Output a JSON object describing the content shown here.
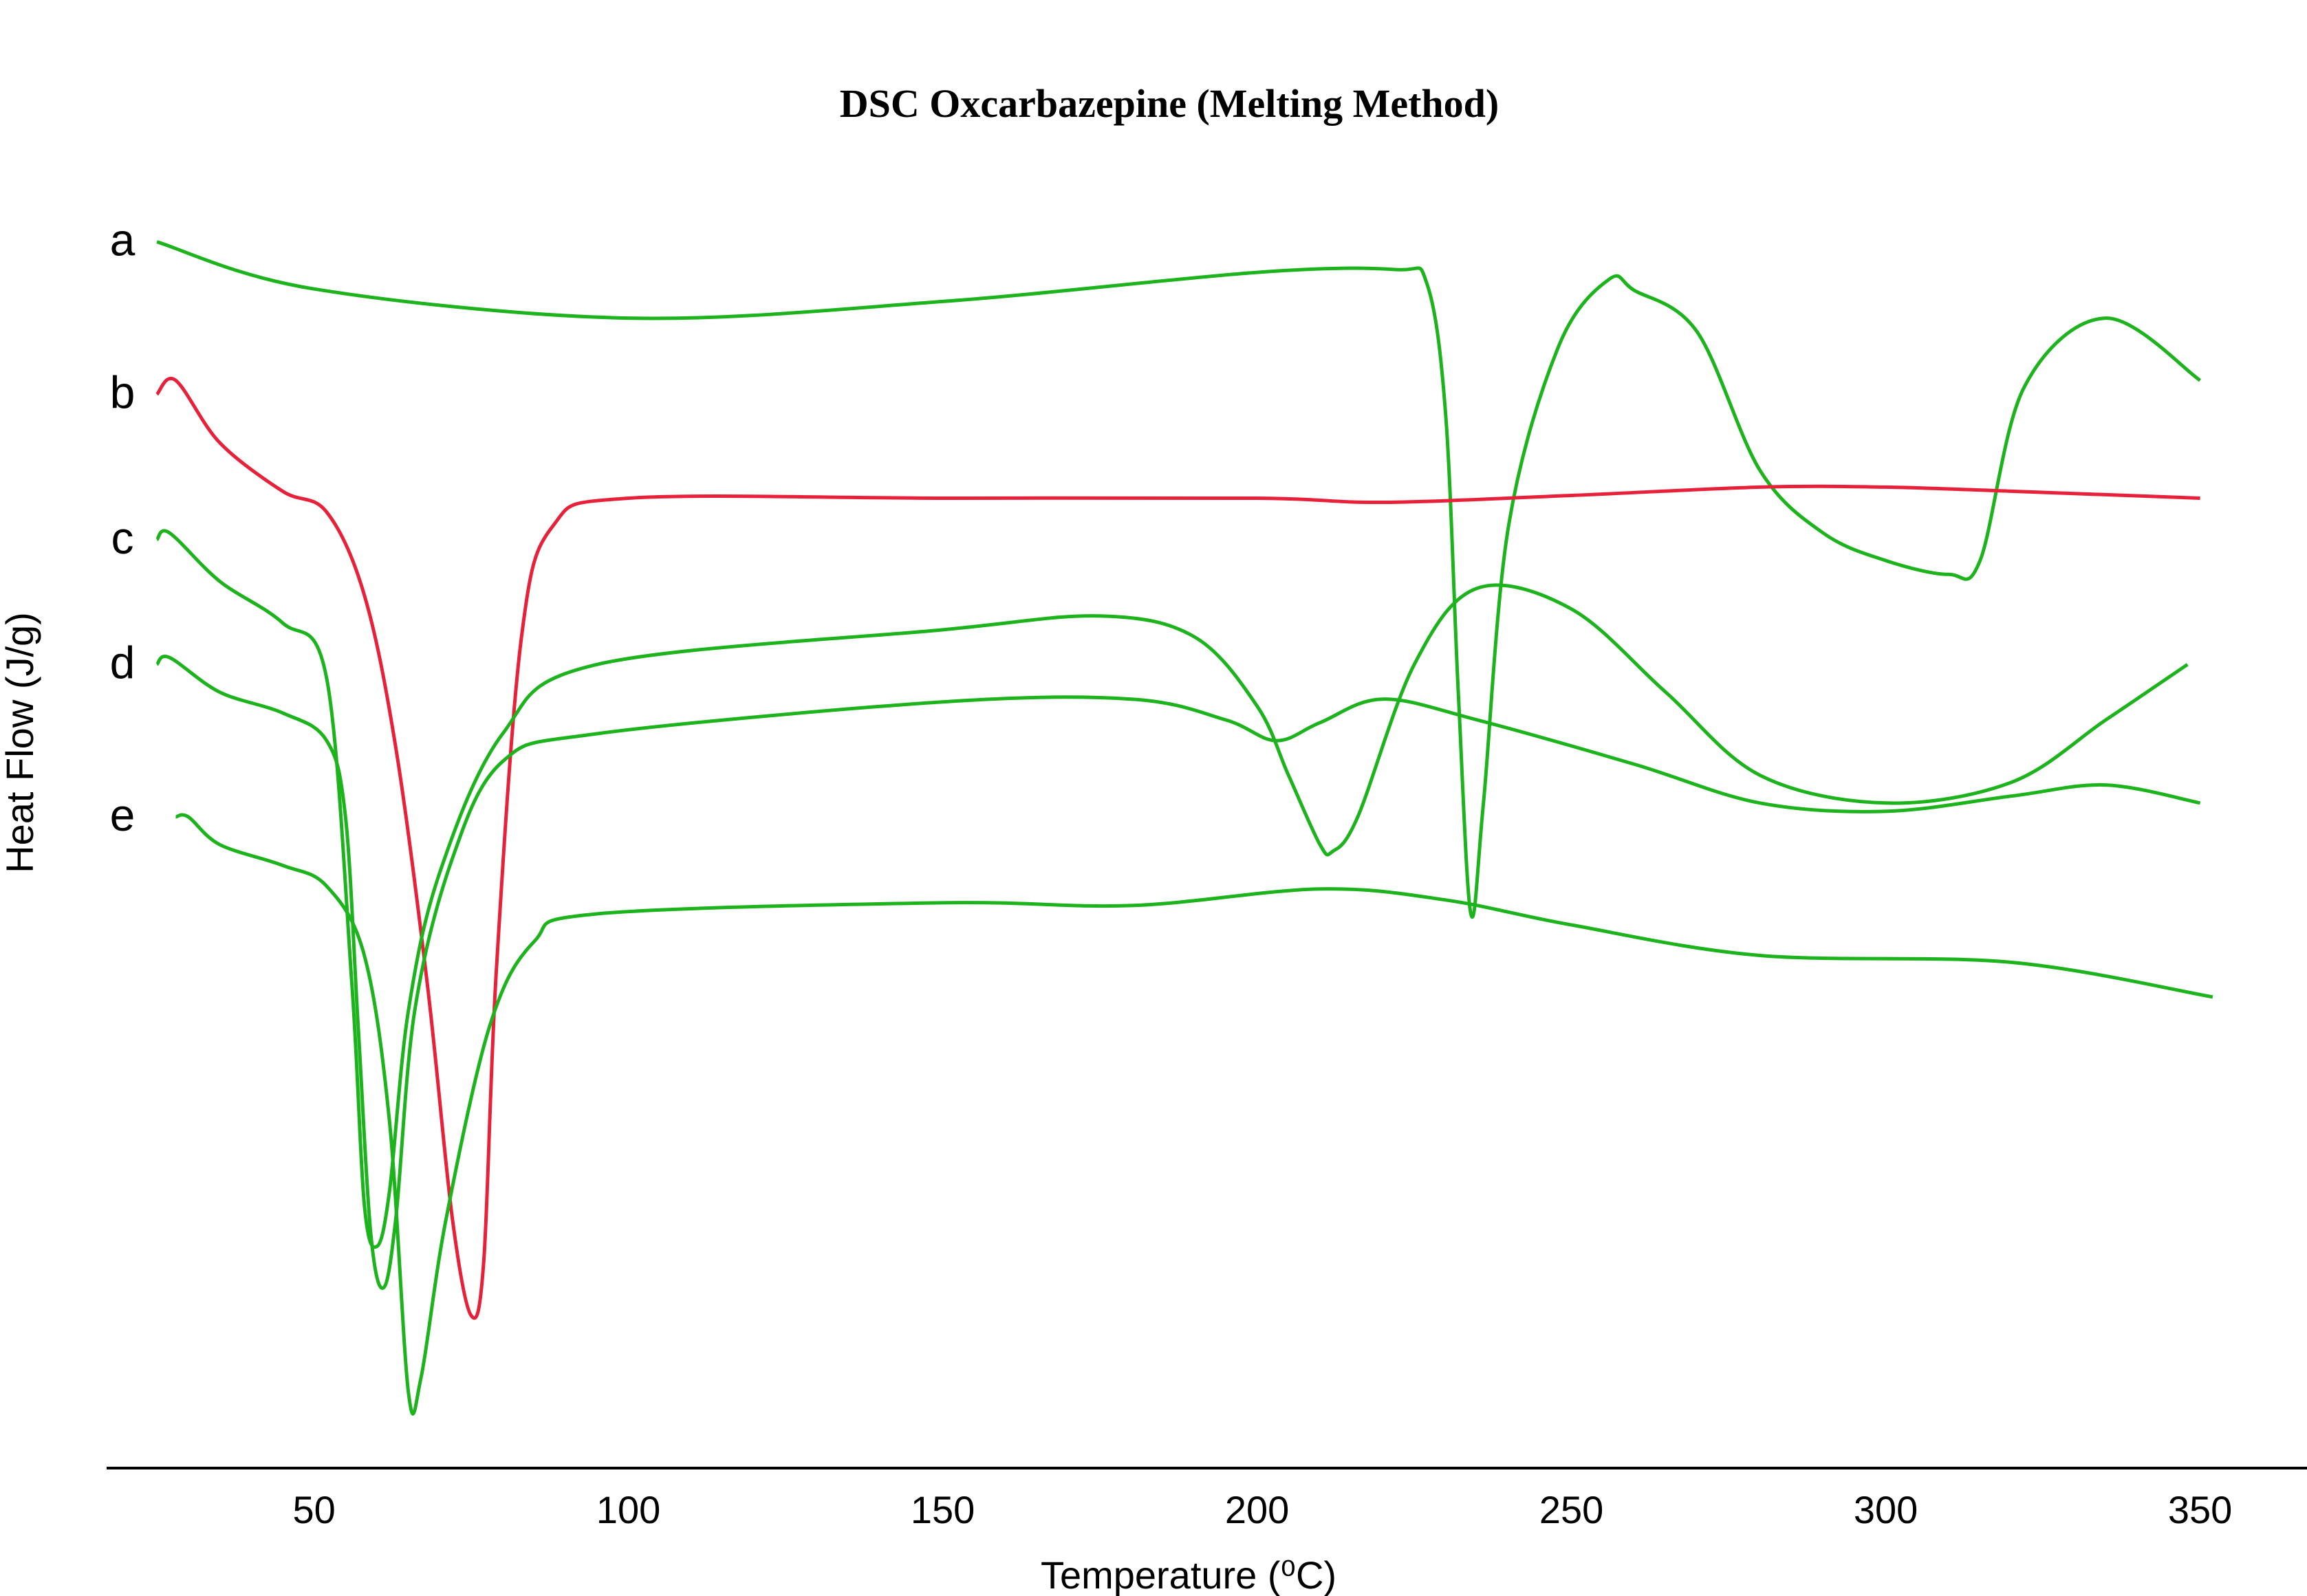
{
  "chart_data": {
    "type": "line",
    "title": "DSC Oxcarbazepine (Melting Method)",
    "xlabel": "Temperature (⁰C)",
    "ylabel": "Heat Flow (J/g)",
    "xlim": [
      17,
      367
    ],
    "ylim": [
      0,
      1000
    ],
    "xticks": [
      50,
      100,
      150,
      200,
      250,
      300,
      350
    ],
    "grid": false,
    "series": [
      {
        "name": "a",
        "color": "#1db31d",
        "points": [
          [
            25,
            885
          ],
          [
            50,
            851
          ],
          [
            100,
            830
          ],
          [
            150,
            842
          ],
          [
            200,
            863
          ],
          [
            222,
            865
          ],
          [
            227,
            855
          ],
          [
            230,
            760
          ],
          [
            232,
            560
          ],
          [
            234,
            400
          ],
          [
            236,
            480
          ],
          [
            240,
            680
          ],
          [
            248,
            810
          ],
          [
            256,
            858
          ],
          [
            260,
            850
          ],
          [
            270,
            820
          ],
          [
            280,
            720
          ],
          [
            290,
            675
          ],
          [
            300,
            655
          ],
          [
            310,
            645
          ],
          [
            315,
            655
          ],
          [
            322,
            780
          ],
          [
            335,
            830
          ],
          [
            350,
            785
          ]
        ]
      },
      {
        "name": "b",
        "color": "#e8213a",
        "points": [
          [
            25,
            775
          ],
          [
            28,
            785
          ],
          [
            35,
            740
          ],
          [
            45,
            705
          ],
          [
            52,
            690
          ],
          [
            58,
            630
          ],
          [
            63,
            520
          ],
          [
            68,
            350
          ],
          [
            72,
            180
          ],
          [
            75,
            110
          ],
          [
            77,
            150
          ],
          [
            79,
            360
          ],
          [
            83,
            600
          ],
          [
            88,
            680
          ],
          [
            100,
            700
          ],
          [
            150,
            700
          ],
          [
            200,
            700
          ],
          [
            220,
            697
          ],
          [
            250,
            702
          ],
          [
            280,
            708
          ],
          [
            300,
            708
          ],
          [
            320,
            705
          ],
          [
            350,
            700
          ]
        ]
      },
      {
        "name": "c",
        "color": "#1db31d",
        "points": [
          [
            25,
            670
          ],
          [
            27,
            675
          ],
          [
            35,
            640
          ],
          [
            45,
            610
          ],
          [
            52,
            570
          ],
          [
            56,
            350
          ],
          [
            58,
            190
          ],
          [
            60,
            160
          ],
          [
            62,
            200
          ],
          [
            65,
            330
          ],
          [
            70,
            430
          ],
          [
            80,
            530
          ],
          [
            95,
            580
          ],
          [
            150,
            605
          ],
          [
            175,
            615
          ],
          [
            190,
            600
          ],
          [
            200,
            550
          ],
          [
            205,
            500
          ],
          [
            210,
            450
          ],
          [
            212,
            445
          ],
          [
            216,
            470
          ],
          [
            225,
            580
          ],
          [
            235,
            635
          ],
          [
            250,
            620
          ],
          [
            265,
            560
          ],
          [
            280,
            500
          ],
          [
            300,
            480
          ],
          [
            320,
            495
          ],
          [
            335,
            540
          ],
          [
            348,
            580
          ]
        ]
      },
      {
        "name": "d",
        "color": "#1db31d",
        "points": [
          [
            25,
            580
          ],
          [
            27,
            585
          ],
          [
            35,
            560
          ],
          [
            45,
            545
          ],
          [
            52,
            525
          ],
          [
            55,
            470
          ],
          [
            57,
            320
          ],
          [
            59,
            170
          ],
          [
            61,
            130
          ],
          [
            63,
            180
          ],
          [
            66,
            330
          ],
          [
            72,
            440
          ],
          [
            80,
            510
          ],
          [
            95,
            530
          ],
          [
            150,
            553
          ],
          [
            180,
            555
          ],
          [
            195,
            540
          ],
          [
            203,
            525
          ],
          [
            210,
            538
          ],
          [
            220,
            555
          ],
          [
            235,
            540
          ],
          [
            260,
            508
          ],
          [
            280,
            480
          ],
          [
            300,
            474
          ],
          [
            320,
            485
          ],
          [
            335,
            493
          ],
          [
            350,
            480
          ]
        ]
      },
      {
        "name": "e",
        "color": "#1db31d",
        "points": [
          [
            28,
            470
          ],
          [
            30,
            470
          ],
          [
            35,
            450
          ],
          [
            45,
            435
          ],
          [
            52,
            420
          ],
          [
            58,
            370
          ],
          [
            62,
            250
          ],
          [
            65,
            55
          ],
          [
            67,
            65
          ],
          [
            71,
            180
          ],
          [
            78,
            320
          ],
          [
            85,
            380
          ],
          [
            95,
            400
          ],
          [
            150,
            408
          ],
          [
            180,
            406
          ],
          [
            210,
            418
          ],
          [
            230,
            410
          ],
          [
            250,
            392
          ],
          [
            280,
            370
          ],
          [
            320,
            365
          ],
          [
            352,
            340
          ]
        ]
      }
    ]
  }
}
